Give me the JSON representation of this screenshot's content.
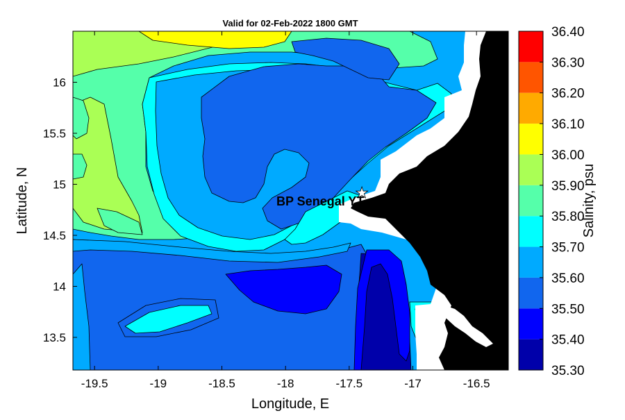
{
  "title": "Valid for 02-Feb-2022 1800 GMT",
  "axes": {
    "xlabel": "Longitude, E",
    "ylabel": "Latitude, N",
    "xticks": [
      -19.5,
      -19,
      -18.5,
      -18,
      -17.5,
      -17,
      -16.5
    ],
    "xtick_labels": [
      "-19.5",
      "-19",
      "-18.5",
      "-18",
      "-17.5",
      "-17",
      "-16.5"
    ],
    "yticks": [
      16,
      15.5,
      15,
      14.5,
      14,
      13.5
    ],
    "ytick_labels": [
      "16",
      "15.5",
      "15",
      "14.5",
      "14",
      "13.5"
    ]
  },
  "colorbar": {
    "label": "Salinity, psu",
    "levels": [
      35.3,
      35.4,
      35.5,
      35.6,
      35.7,
      35.8,
      35.9,
      36.0,
      36.1,
      36.2,
      36.3,
      36.4
    ],
    "tick_labels": [
      "35.30",
      "35.40",
      "35.50",
      "35.60",
      "35.70",
      "35.80",
      "35.90",
      "36.00",
      "36.10",
      "36.20",
      "36.30",
      "36.40"
    ],
    "colors": [
      "#0000aa",
      "#0000ff",
      "#1166ee",
      "#00aaff",
      "#00ffff",
      "#55ffaa",
      "#aaff55",
      "#ffff00",
      "#ffaa00",
      "#ff5500",
      "#ff0000"
    ]
  },
  "station": {
    "label": "BP Senegal YT",
    "marker": "star-icon",
    "lon": -17.4,
    "lat": 14.92
  },
  "colors": {
    "land": "#000000",
    "nodata": "#ffffff"
  }
}
